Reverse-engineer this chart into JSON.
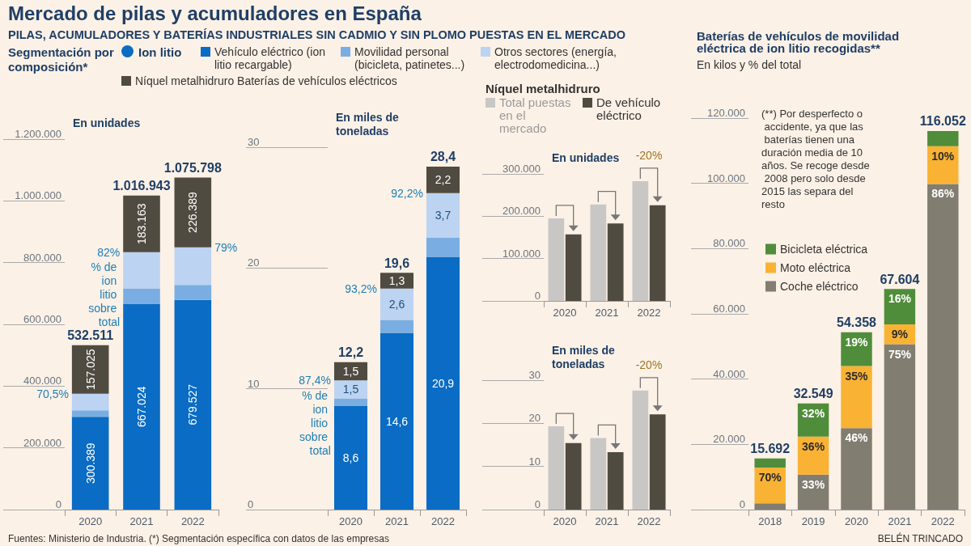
{
  "chart_data": [
    {
      "type": "bar",
      "title": "Mercado de pilas y acumuladores en España",
      "subtitle": "PILAS, ACUMULADORES Y BATERÍAS INDUSTRIALES SIN CADMIO Y SIN PLOMO PUESTAS EN EL MERCADO",
      "legend_title": "Segmentación por composición*",
      "ylabel": "En unidades",
      "categories": [
        "2020",
        "2021",
        "2022"
      ],
      "stacked": true,
      "legend": "top",
      "ylim": [
        0,
        1200000
      ],
      "yticks": [
        0,
        {
          "value": 200000,
          "label": "200.000"
        },
        {
          "value": 400000,
          "label": "400.000"
        },
        {
          "value": 600000,
          "label": "600.000"
        },
        {
          "value": 800000,
          "label": "800.000"
        },
        {
          "value": 1000000,
          "label": "1.000.000"
        },
        {
          "value": 1200000,
          "label": "1.200.000"
        }
      ],
      "series": [
        {
          "name": "Vehículo eléctrico (ion litio recargable)",
          "color": "#0a6cc4",
          "values": [
            300389,
            667024,
            679527
          ],
          "value_labels": [
            "300.389",
            "667.024",
            "679.527"
          ]
        },
        {
          "name": "Movilidad personal (bicicleta, patinetes...)",
          "color": "#7aaee2",
          "values": [
            21000,
            48500,
            48500
          ]
        },
        {
          "name": "Otros sectores (energía, electrodomedicina...)",
          "color": "#bcd3f1",
          "values": [
            54097,
            118256,
            121382
          ]
        },
        {
          "name": "Níquel metalhidruro Baterías de vehículos eléctricos",
          "color": "#504b41",
          "values": [
            157025,
            183163,
            226389
          ],
          "value_labels": [
            "157.025",
            "183.163",
            "226.389"
          ]
        }
      ],
      "totals": [
        "532.511",
        "1.016.943",
        "1.075.798"
      ],
      "annotations": [
        "Ion litio",
        {
          "text": "70,5%",
          "x": "2020",
          "y": 375486
        },
        {
          "text": "82%",
          "x": "2021",
          "y": 833780
        },
        "% de ion litio sobre total",
        {
          "text": "79%",
          "x": "2022",
          "y": 849409
        },
        "Fuentes: Ministerio de Industria. (*) Segmentación específica con datos de las empresas",
        "BELÉN TRINCADO"
      ]
    },
    {
      "type": "bar",
      "ylabel": "En miles de toneladas",
      "categories": [
        "2020",
        "2021",
        "2022"
      ],
      "stacked": true,
      "legend": false,
      "ylim": [
        0,
        30
      ],
      "yticks": [
        0,
        10,
        20,
        30
      ],
      "series": [
        {
          "color": "#0a6cc4",
          "values": [
            8.6,
            14.6,
            20.9
          ],
          "value_labels": [
            "8,6",
            "14,6",
            "20,9"
          ]
        },
        {
          "color": "#7aaee2",
          "values": [
            0.6,
            1.1,
            1.6
          ]
        },
        {
          "color": "#bcd3f1",
          "values": [
            1.5,
            2.6,
            3.7
          ],
          "value_labels": [
            "1,5",
            "2,6",
            "3,7"
          ]
        },
        {
          "color": "#504b41",
          "values": [
            1.5,
            1.3,
            2.2
          ],
          "value_labels": [
            "1,5",
            "1,3",
            "2,2"
          ]
        }
      ],
      "totals": [
        "12,2",
        "19,6",
        "28,4"
      ],
      "annotations": [
        {
          "text": "87,4%",
          "x": "2020",
          "y": 10.7
        },
        "% de ion litio sobre total",
        {
          "text": "93,2%",
          "x": "2021",
          "y": 18.3
        },
        {
          "text": "92,2%",
          "x": "2022",
          "y": 26.2
        }
      ]
    },
    {
      "type": "bar",
      "legend_title": "Níquel metalhidruro",
      "ylabel": "En unidades",
      "categories": [
        "2020",
        "2021",
        "2022"
      ],
      "legend": "top",
      "ylim": [
        0,
        300000
      ],
      "yticks": [
        0,
        {
          "value": 100000,
          "label": "100.000"
        },
        {
          "value": 200000,
          "label": "200.000"
        },
        {
          "value": 300000,
          "label": "300.000"
        }
      ],
      "series": [
        {
          "name": "Total puestas en el mercado",
          "color": "#c9c7c6",
          "values": [
            195000,
            228000,
            283000
          ]
        },
        {
          "name": "De vehículo eléctrico",
          "color": "#504b41",
          "values": [
            157000,
            183000,
            226000
          ]
        }
      ],
      "annotations": [
        {
          "text": "-20%",
          "x": "2022",
          "y": 283000
        }
      ]
    },
    {
      "type": "bar",
      "ylabel": "En miles de toneladas",
      "categories": [
        "2020",
        "2021",
        "2022"
      ],
      "legend": false,
      "ylim": [
        0,
        30
      ],
      "yticks": [
        0,
        10,
        20,
        30
      ],
      "series": [
        {
          "color": "#c9c7c6",
          "values": [
            19.3,
            16.6,
            27.6
          ]
        },
        {
          "color": "#504b41",
          "values": [
            15.4,
            13.3,
            22.1
          ]
        }
      ],
      "annotations": [
        {
          "text": "-20%",
          "x": "2022",
          "y": 27.6
        }
      ]
    },
    {
      "type": "bar",
      "title": "Baterías de vehículos de movilidad eléctrica de ion litio recogidas**",
      "subtitle": "En kilos y % del total",
      "categories": [
        "2018",
        "2019",
        "2020",
        "2021",
        "2022"
      ],
      "stacked": true,
      "legend": "top left",
      "ylim": [
        0,
        120000
      ],
      "yticks": [
        0,
        {
          "value": 20000,
          "label": "20.000"
        },
        {
          "value": 40000,
          "label": "40.000"
        },
        {
          "value": 60000,
          "label": "60.000"
        },
        {
          "value": 80000,
          "label": "80.000"
        },
        {
          "value": 100000,
          "label": "100.000"
        },
        {
          "value": 120000,
          "label": "120.000"
        }
      ],
      "series": [
        {
          "name": "Coche eléctrico",
          "color": "#817d71",
          "values": [
            1900,
            10700,
            25000,
            50700,
            99800
          ]
        },
        {
          "name": "Moto eléctrica",
          "color": "#f9b233",
          "values": [
            11000,
            11700,
            19000,
            6100,
            11600
          ]
        },
        {
          "name": "Bicicleta eléctrica",
          "color": "#4f8d3b",
          "values": [
            2792,
            10149,
            10358,
            10804,
            4652
          ]
        }
      ],
      "totals": [
        "15.692",
        "32.549",
        "54.358",
        "67.604",
        "116.052"
      ],
      "annotations": [
        "(**) Por desperfecto o accidente, ya que las baterías tienen una duración media de 10 años. Se recoge desde 2008 pero solo desde 2015 las separa del resto",
        {
          "text": "70%",
          "x": "2018",
          "y": 12900
        },
        {
          "text": "33%",
          "x": "2019",
          "y": 10700
        },
        {
          "text": "36%",
          "x": "2019",
          "y": 22400
        },
        {
          "text": "32%",
          "x": "2019",
          "y": 32549
        },
        {
          "text": "46%",
          "x": "2020",
          "y": 25000
        },
        {
          "text": "35%",
          "x": "2020",
          "y": 44000
        },
        {
          "text": "19%",
          "x": "2020",
          "y": 54358
        },
        {
          "text": "75%",
          "x": "2021",
          "y": 50700
        },
        {
          "text": "9%",
          "x": "2021",
          "y": 56800
        },
        {
          "text": "16%",
          "x": "2021",
          "y": 67604
        },
        {
          "text": "86%",
          "x": "2022",
          "y": 99800
        },
        {
          "text": "10%",
          "x": "2022",
          "y": 111400
        }
      ]
    }
  ]
}
